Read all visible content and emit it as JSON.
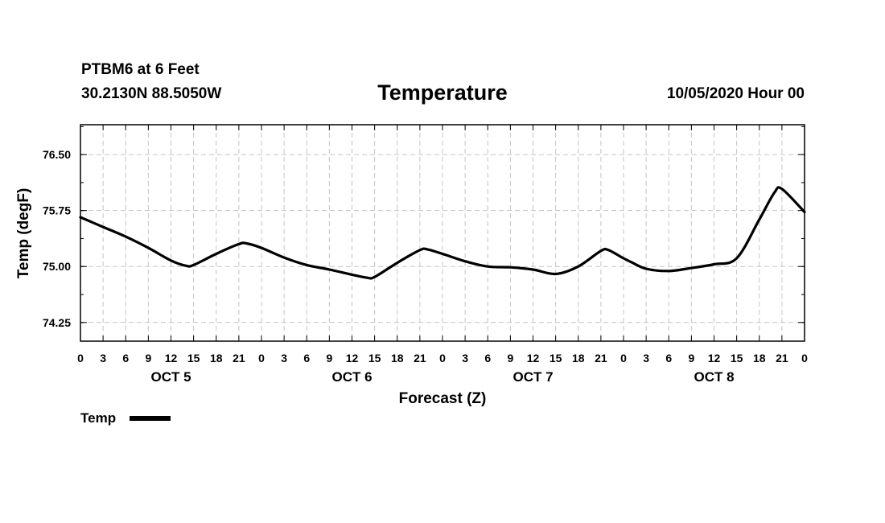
{
  "header": {
    "station": "PTBM6 at 6 Feet",
    "coords": "30.2130N 88.5050W",
    "title": "Temperature",
    "run": "10/05/2020 Hour 00"
  },
  "chart_data": {
    "type": "line",
    "title": "Temperature",
    "xlabel": "Forecast (Z)",
    "ylabel": "Temp (degF)",
    "xlim": [
      0,
      96
    ],
    "ylim": [
      74.0,
      76.9
    ],
    "yticks": [
      74.25,
      75.0,
      75.75,
      76.5
    ],
    "ytick_labels": [
      "74.25",
      "75.00",
      "75.75",
      "76.50"
    ],
    "x_tick_labels": [
      "0",
      "3",
      "6",
      "9",
      "12",
      "15",
      "18",
      "21",
      "0",
      "3",
      "6",
      "9",
      "12",
      "15",
      "18",
      "21",
      "0",
      "3",
      "6",
      "9",
      "12",
      "15",
      "18",
      "21",
      "0",
      "3",
      "6",
      "9",
      "12",
      "15",
      "18",
      "21",
      "0"
    ],
    "day_labels": [
      {
        "label": "OCT 5",
        "hour": 12
      },
      {
        "label": "OCT 6",
        "hour": 36
      },
      {
        "label": "OCT 7",
        "hour": 60
      },
      {
        "label": "OCT 8",
        "hour": 84
      }
    ],
    "grid": true,
    "legend": {
      "position": "bottom-left",
      "entries": [
        "Temp"
      ]
    },
    "series": [
      {
        "name": "Temp",
        "x": [
          0,
          3,
          6,
          9,
          12,
          14,
          15,
          18,
          21,
          22,
          24,
          27,
          30,
          33,
          36,
          38,
          39,
          42,
          45,
          46,
          48,
          51,
          54,
          57,
          60,
          63,
          66,
          69,
          70,
          72,
          73,
          75,
          78,
          81,
          84,
          87,
          90,
          92,
          93,
          96
        ],
        "y": [
          75.66,
          75.53,
          75.4,
          75.25,
          75.08,
          75.01,
          75.02,
          75.17,
          75.3,
          75.31,
          75.25,
          75.12,
          75.02,
          74.96,
          74.89,
          74.85,
          74.86,
          75.05,
          75.22,
          75.23,
          75.17,
          75.07,
          75.0,
          74.99,
          74.96,
          74.9,
          75.0,
          75.21,
          75.22,
          75.11,
          75.06,
          74.97,
          74.94,
          74.98,
          75.03,
          75.11,
          75.63,
          75.99,
          76.04,
          75.73
        ]
      }
    ]
  },
  "legend": {
    "label": "Temp"
  }
}
